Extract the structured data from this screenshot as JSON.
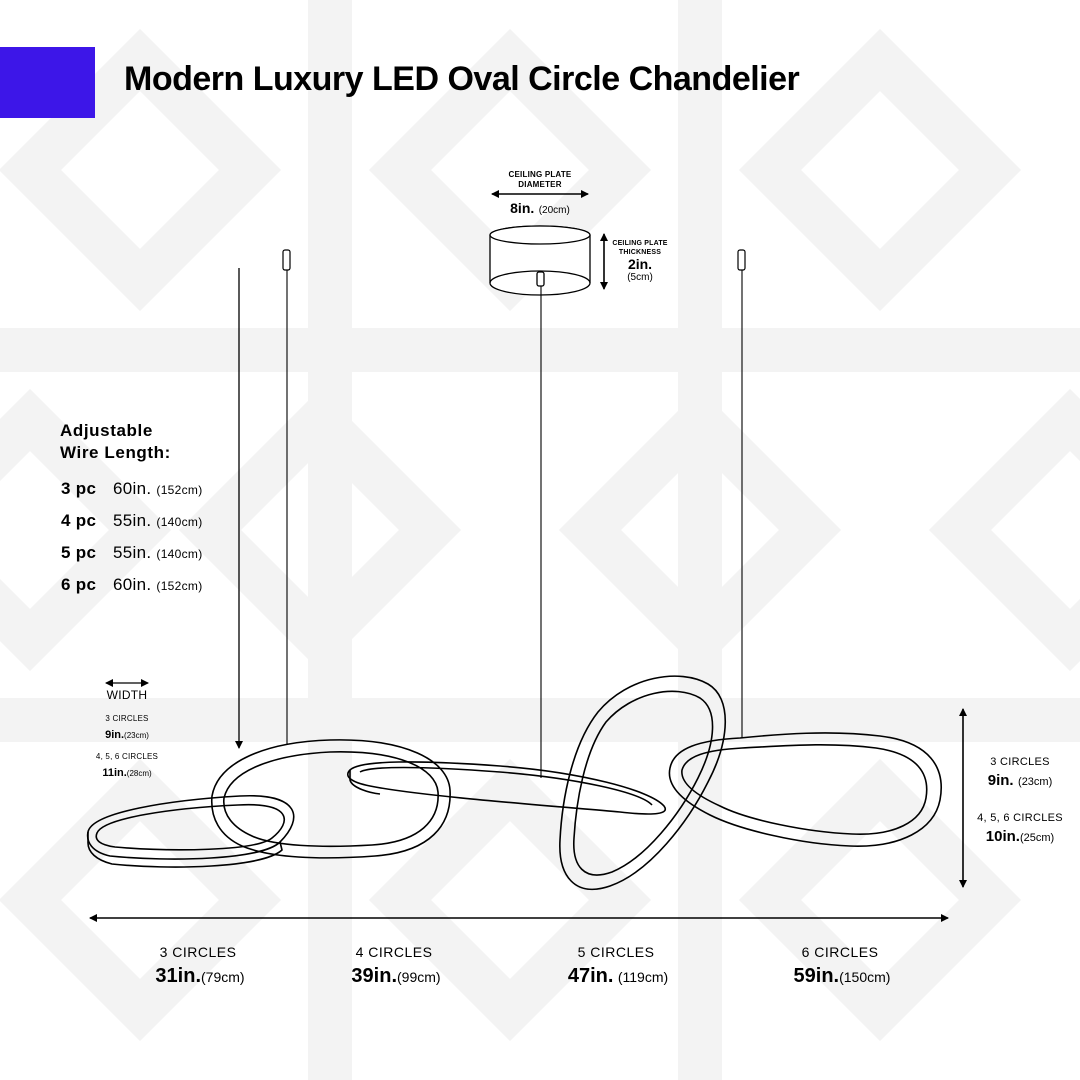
{
  "title": "Modern Luxury LED Oval Circle Chandelier",
  "colors": {
    "brand": "#3d16e8",
    "line": "#000000",
    "watermark": "#f4f4f4"
  },
  "ceiling_plate": {
    "diameter_label": "CEILING PLATE DIAMETER",
    "diameter_in": "8in.",
    "diameter_cm": "(20cm)",
    "thickness_label": "CEILING PLATE THICKNESS",
    "thickness_in": "2in.",
    "thickness_cm": "(5cm)"
  },
  "wire": {
    "heading_line1": "Adjustable",
    "heading_line2": "Wire Length:",
    "rows": [
      {
        "pc": "3 pc",
        "inch": "60in.",
        "cm": "(152cm)"
      },
      {
        "pc": "4 pc",
        "inch": "55in.",
        "cm": "(140cm)"
      },
      {
        "pc": "5 pc",
        "inch": "55in.",
        "cm": "(140cm)"
      },
      {
        "pc": "6 pc",
        "inch": "60in.",
        "cm": "(152cm)"
      }
    ]
  },
  "width": {
    "label": "WIDTH",
    "a_label": "3 CIRCLES",
    "a_in": "9in.",
    "a_cm": "(23cm)",
    "b_label": "4, 5, 6 CIRCLES",
    "b_in": "11in.",
    "b_cm": "(28cm)"
  },
  "height": {
    "a_label": "3 CIRCLES",
    "a_in": "9in.",
    "a_cm": "(23cm)",
    "b_label": "4, 5, 6 CIRCLES",
    "b_in": "10in.",
    "b_cm": "(25cm)"
  },
  "lengths": [
    {
      "label": "3 CIRCLES",
      "inch": "31in.",
      "cm": "(79cm)"
    },
    {
      "label": "4 CIRCLES",
      "inch": "39in.",
      "cm": "(99cm)"
    },
    {
      "label": "5 CIRCLES",
      "inch": "47in.",
      "cm": "(119cm)"
    },
    {
      "label": "6 CIRCLES",
      "inch": "59in.",
      "cm": "(150cm)"
    }
  ]
}
